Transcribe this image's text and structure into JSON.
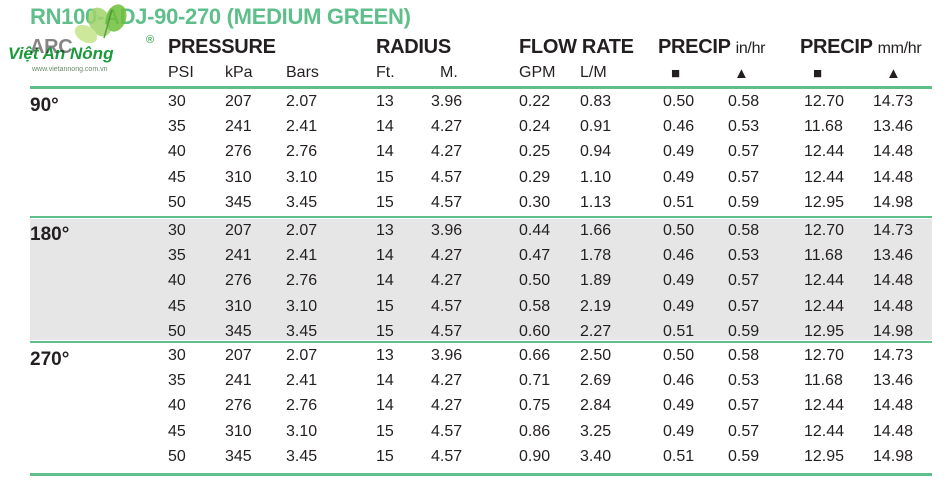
{
  "title": "RN100-ADJ-90-270 (MEDIUM GREEN)",
  "logo": {
    "name": "Việt An Nông",
    "url": "www.vietannong.com.vn",
    "reg": "®"
  },
  "headers": {
    "arc": "ARC",
    "pressure": "PRESSURE",
    "radius": "RADIUS",
    "flow_rate": "FLOW RATE",
    "precip_in": {
      "label": "PRECIP",
      "unit": "in/hr"
    },
    "precip_mm": {
      "label": "PRECIP",
      "unit": "mm/hr"
    }
  },
  "subheaders": [
    "PSI",
    "kPa",
    "Bars",
    "Ft.",
    "M.",
    "GPM",
    "L/M"
  ],
  "spacing_symbols": {
    "square": "■",
    "triangle": "▲"
  },
  "sections": [
    {
      "arc": "90°",
      "rows": [
        [
          "30",
          "207",
          "2.07",
          "13",
          "3.96",
          "0.22",
          "0.83",
          "0.50",
          "0.58",
          "12.70",
          "14.73"
        ],
        [
          "35",
          "241",
          "2.41",
          "14",
          "4.27",
          "0.24",
          "0.91",
          "0.46",
          "0.53",
          "11.68",
          "13.46"
        ],
        [
          "40",
          "276",
          "2.76",
          "14",
          "4.27",
          "0.25",
          "0.94",
          "0.49",
          "0.57",
          "12.44",
          "14.48"
        ],
        [
          "45",
          "310",
          "3.10",
          "15",
          "4.57",
          "0.29",
          "1.10",
          "0.49",
          "0.57",
          "12.44",
          "14.48"
        ],
        [
          "50",
          "345",
          "3.45",
          "15",
          "4.57",
          "0.30",
          "1.13",
          "0.51",
          "0.59",
          "12.95",
          "14.98"
        ]
      ]
    },
    {
      "arc": "180°",
      "rows": [
        [
          "30",
          "207",
          "2.07",
          "13",
          "3.96",
          "0.44",
          "1.66",
          "0.50",
          "0.58",
          "12.70",
          "14.73"
        ],
        [
          "35",
          "241",
          "2.41",
          "14",
          "4.27",
          "0.47",
          "1.78",
          "0.46",
          "0.53",
          "11.68",
          "13.46"
        ],
        [
          "40",
          "276",
          "2.76",
          "14",
          "4.27",
          "0.50",
          "1.89",
          "0.49",
          "0.57",
          "12.44",
          "14.48"
        ],
        [
          "45",
          "310",
          "3.10",
          "15",
          "4.57",
          "0.58",
          "2.19",
          "0.49",
          "0.57",
          "12.44",
          "14.48"
        ],
        [
          "50",
          "345",
          "3.45",
          "15",
          "4.57",
          "0.60",
          "2.27",
          "0.51",
          "0.59",
          "12.95",
          "14.98"
        ]
      ]
    },
    {
      "arc": "270°",
      "rows": [
        [
          "30",
          "207",
          "2.07",
          "13",
          "3.96",
          "0.66",
          "2.50",
          "0.50",
          "0.58",
          "12.70",
          "14.73"
        ],
        [
          "35",
          "241",
          "2.41",
          "14",
          "4.27",
          "0.71",
          "2.69",
          "0.46",
          "0.53",
          "11.68",
          "13.46"
        ],
        [
          "40",
          "276",
          "2.76",
          "14",
          "4.27",
          "0.75",
          "2.84",
          "0.49",
          "0.57",
          "12.44",
          "14.48"
        ],
        [
          "45",
          "310",
          "3.10",
          "15",
          "4.57",
          "0.86",
          "3.25",
          "0.49",
          "0.57",
          "12.44",
          "14.48"
        ],
        [
          "50",
          "345",
          "3.45",
          "15",
          "4.57",
          "0.90",
          "3.40",
          "0.51",
          "0.59",
          "12.95",
          "14.98"
        ]
      ]
    }
  ],
  "colors": {
    "accent": "#5fbf8a",
    "band": "#e6e6e6",
    "logo_green": "#1b9a3c",
    "text": "#231f20"
  }
}
